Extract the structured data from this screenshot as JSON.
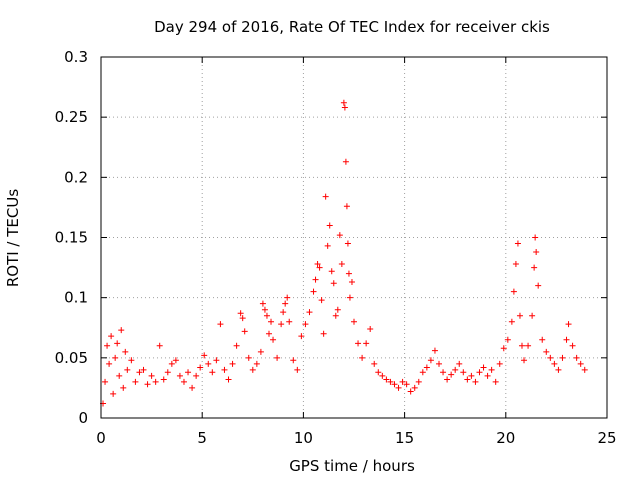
{
  "chart_data": {
    "type": "scatter",
    "title": "Day 294 of 2016, Rate Of TEC Index for receiver ckis",
    "xlabel": "GPS time / hours",
    "ylabel": "ROTI / TECUs",
    "xlim": [
      0,
      25
    ],
    "ylim": [
      0,
      0.3
    ],
    "xticks": [
      0,
      5,
      10,
      15,
      20,
      25
    ],
    "yticks": [
      0,
      0.05,
      0.1,
      0.15,
      0.2,
      0.25,
      0.3
    ],
    "xtick_labels": [
      "0",
      "5",
      "10",
      "15",
      "20",
      "25"
    ],
    "ytick_labels": [
      "0",
      "0.05",
      "0.1",
      "0.15",
      "0.2",
      "0.25",
      "0.3"
    ],
    "grid": true,
    "marker": "+",
    "series": [
      {
        "name": "ROTI",
        "color": "#ff0000",
        "points": [
          [
            0.1,
            0.012
          ],
          [
            0.2,
            0.03
          ],
          [
            0.3,
            0.06
          ],
          [
            0.4,
            0.045
          ],
          [
            0.5,
            0.068
          ],
          [
            0.6,
            0.02
          ],
          [
            0.7,
            0.05
          ],
          [
            0.8,
            0.062
          ],
          [
            0.9,
            0.035
          ],
          [
            1.0,
            0.073
          ],
          [
            1.1,
            0.025
          ],
          [
            1.2,
            0.055
          ],
          [
            1.3,
            0.04
          ],
          [
            1.5,
            0.048
          ],
          [
            1.7,
            0.03
          ],
          [
            1.9,
            0.038
          ],
          [
            2.1,
            0.04
          ],
          [
            2.3,
            0.028
          ],
          [
            2.5,
            0.035
          ],
          [
            2.7,
            0.03
          ],
          [
            2.9,
            0.06
          ],
          [
            3.1,
            0.032
          ],
          [
            3.3,
            0.038
          ],
          [
            3.5,
            0.045
          ],
          [
            3.7,
            0.048
          ],
          [
            3.9,
            0.035
          ],
          [
            4.1,
            0.03
          ],
          [
            4.3,
            0.038
          ],
          [
            4.5,
            0.025
          ],
          [
            4.7,
            0.035
          ],
          [
            4.9,
            0.042
          ],
          [
            5.1,
            0.052
          ],
          [
            5.3,
            0.045
          ],
          [
            5.5,
            0.038
          ],
          [
            5.7,
            0.048
          ],
          [
            5.9,
            0.078
          ],
          [
            6.1,
            0.04
          ],
          [
            6.3,
            0.032
          ],
          [
            6.5,
            0.045
          ],
          [
            6.7,
            0.06
          ],
          [
            6.9,
            0.087
          ],
          [
            7.0,
            0.083
          ],
          [
            7.1,
            0.072
          ],
          [
            7.3,
            0.05
          ],
          [
            7.5,
            0.04
          ],
          [
            7.7,
            0.045
          ],
          [
            7.9,
            0.055
          ],
          [
            8.0,
            0.095
          ],
          [
            8.1,
            0.09
          ],
          [
            8.2,
            0.085
          ],
          [
            8.3,
            0.07
          ],
          [
            8.4,
            0.08
          ],
          [
            8.5,
            0.065
          ],
          [
            8.7,
            0.05
          ],
          [
            8.9,
            0.078
          ],
          [
            9.0,
            0.088
          ],
          [
            9.1,
            0.095
          ],
          [
            9.2,
            0.1
          ],
          [
            9.3,
            0.08
          ],
          [
            9.5,
            0.048
          ],
          [
            9.7,
            0.04
          ],
          [
            9.9,
            0.068
          ],
          [
            10.1,
            0.078
          ],
          [
            10.3,
            0.088
          ],
          [
            10.5,
            0.105
          ],
          [
            10.6,
            0.115
          ],
          [
            10.7,
            0.128
          ],
          [
            10.8,
            0.125
          ],
          [
            10.9,
            0.098
          ],
          [
            11.0,
            0.07
          ],
          [
            11.1,
            0.184
          ],
          [
            11.2,
            0.143
          ],
          [
            11.3,
            0.16
          ],
          [
            11.4,
            0.122
          ],
          [
            11.5,
            0.112
          ],
          [
            11.6,
            0.085
          ],
          [
            11.7,
            0.09
          ],
          [
            11.8,
            0.152
          ],
          [
            11.9,
            0.128
          ],
          [
            12.0,
            0.262
          ],
          [
            12.05,
            0.258
          ],
          [
            12.1,
            0.213
          ],
          [
            12.15,
            0.176
          ],
          [
            12.2,
            0.145
          ],
          [
            12.25,
            0.12
          ],
          [
            12.3,
            0.1
          ],
          [
            12.4,
            0.113
          ],
          [
            12.5,
            0.08
          ],
          [
            12.7,
            0.062
          ],
          [
            12.9,
            0.05
          ],
          [
            13.1,
            0.062
          ],
          [
            13.3,
            0.074
          ],
          [
            13.5,
            0.045
          ],
          [
            13.7,
            0.038
          ],
          [
            13.9,
            0.035
          ],
          [
            14.1,
            0.032
          ],
          [
            14.3,
            0.03
          ],
          [
            14.5,
            0.028
          ],
          [
            14.7,
            0.025
          ],
          [
            14.9,
            0.03
          ],
          [
            15.1,
            0.028
          ],
          [
            15.3,
            0.022
          ],
          [
            15.5,
            0.025
          ],
          [
            15.7,
            0.03
          ],
          [
            15.9,
            0.038
          ],
          [
            16.1,
            0.042
          ],
          [
            16.3,
            0.048
          ],
          [
            16.5,
            0.056
          ],
          [
            16.7,
            0.045
          ],
          [
            16.9,
            0.038
          ],
          [
            17.1,
            0.032
          ],
          [
            17.3,
            0.036
          ],
          [
            17.5,
            0.04
          ],
          [
            17.7,
            0.045
          ],
          [
            17.9,
            0.038
          ],
          [
            18.1,
            0.032
          ],
          [
            18.3,
            0.035
          ],
          [
            18.5,
            0.03
          ],
          [
            18.7,
            0.038
          ],
          [
            18.9,
            0.042
          ],
          [
            19.1,
            0.035
          ],
          [
            19.3,
            0.04
          ],
          [
            19.5,
            0.03
          ],
          [
            19.7,
            0.045
          ],
          [
            19.9,
            0.058
          ],
          [
            20.1,
            0.065
          ],
          [
            20.3,
            0.08
          ],
          [
            20.4,
            0.105
          ],
          [
            20.5,
            0.128
          ],
          [
            20.6,
            0.145
          ],
          [
            20.7,
            0.085
          ],
          [
            20.8,
            0.06
          ],
          [
            20.9,
            0.048
          ],
          [
            21.1,
            0.06
          ],
          [
            21.3,
            0.085
          ],
          [
            21.4,
            0.125
          ],
          [
            21.45,
            0.15
          ],
          [
            21.5,
            0.138
          ],
          [
            21.6,
            0.11
          ],
          [
            21.8,
            0.065
          ],
          [
            22.0,
            0.055
          ],
          [
            22.2,
            0.05
          ],
          [
            22.4,
            0.045
          ],
          [
            22.6,
            0.04
          ],
          [
            22.8,
            0.05
          ],
          [
            23.0,
            0.065
          ],
          [
            23.1,
            0.078
          ],
          [
            23.3,
            0.06
          ],
          [
            23.5,
            0.05
          ],
          [
            23.7,
            0.045
          ],
          [
            23.9,
            0.04
          ]
        ]
      }
    ]
  }
}
